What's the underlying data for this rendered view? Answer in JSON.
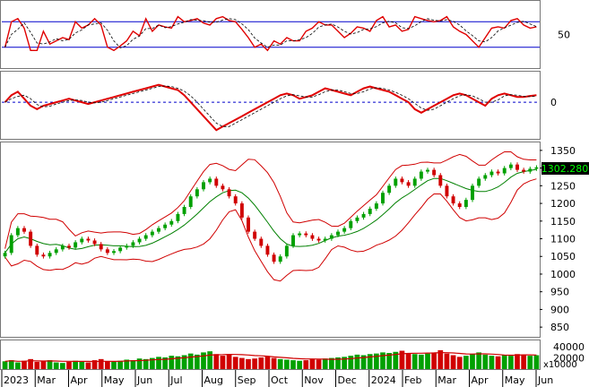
{
  "chart_data": {
    "type": "stock-multi-panel",
    "x_labels": [
      "2023",
      "Mar",
      "Apr",
      "May",
      "Jun",
      "Jul",
      "Aug",
      "Sep",
      "Oct",
      "Nov",
      "Dec",
      "2024",
      "Feb",
      "Mar",
      "Apr",
      "May",
      "Jun"
    ],
    "last_price_badge": "1302.280",
    "colors": {
      "up": "#00a000",
      "down": "#d00000",
      "band": "#d00000",
      "ma": "#008000",
      "osc_line": "#e00000",
      "guide": "#0000cc",
      "badge_bg": "#000000",
      "badge_text": "#00ff00"
    },
    "rsi_panel": {
      "tick_labels": [
        "50"
      ],
      "upper_level": 70,
      "lower_level": 30,
      "range": [
        0,
        100
      ],
      "values": [
        30,
        70,
        75,
        60,
        25,
        25,
        55,
        35,
        40,
        45,
        42,
        70,
        60,
        65,
        75,
        65,
        30,
        25,
        32,
        40,
        55,
        48,
        75,
        55,
        65,
        62,
        60,
        78,
        70,
        72,
        75,
        68,
        65,
        75,
        78,
        72,
        70,
        58,
        45,
        30,
        35,
        25,
        40,
        35,
        45,
        40,
        40,
        55,
        60,
        70,
        65,
        65,
        55,
        45,
        52,
        62,
        60,
        55,
        72,
        78,
        62,
        65,
        55,
        58,
        78,
        75,
        72,
        70,
        72,
        78,
        62,
        55,
        50,
        40,
        30,
        45,
        60,
        62,
        60,
        72,
        75,
        65,
        60,
        62
      ]
    },
    "osc_panel": {
      "tick_labels": [
        "0"
      ],
      "zero_level": 0,
      "range": [
        -10,
        8
      ],
      "values": [
        0,
        2,
        3,
        1,
        -1,
        -2,
        -1,
        -0.5,
        0,
        0.5,
        1,
        0.5,
        0,
        -0.5,
        0,
        0.5,
        1,
        1.5,
        2,
        2.5,
        3,
        3.5,
        4,
        4.5,
        5,
        4.5,
        4,
        3.5,
        2,
        0,
        -2,
        -4,
        -6,
        -8,
        -7,
        -6,
        -5,
        -4,
        -3,
        -2,
        -1,
        0,
        1,
        2,
        2.5,
        2,
        1,
        1.5,
        2,
        3,
        4,
        3.5,
        3,
        2.5,
        2,
        3,
        4,
        4.5,
        4,
        3.5,
        3,
        2,
        1,
        0,
        -2,
        -3,
        -2,
        -1,
        0,
        1,
        2,
        2.5,
        2,
        1,
        0,
        -1,
        1,
        2,
        2.5,
        2,
        1.5,
        1.5,
        1.8,
        2
      ]
    },
    "price_panel": {
      "y_ticks": [
        "1350",
        "1300",
        "1250",
        "1200",
        "1150",
        "1100",
        "1050",
        "1000",
        "950",
        "900",
        "850"
      ],
      "ylim": [
        825,
        1370
      ],
      "close": [
        1060,
        1110,
        1130,
        1120,
        1080,
        1055,
        1050,
        1060,
        1070,
        1080,
        1075,
        1090,
        1100,
        1095,
        1085,
        1070,
        1060,
        1065,
        1075,
        1080,
        1090,
        1100,
        1110,
        1120,
        1130,
        1140,
        1150,
        1170,
        1190,
        1220,
        1240,
        1260,
        1270,
        1250,
        1240,
        1220,
        1200,
        1160,
        1120,
        1100,
        1080,
        1055,
        1035,
        1050,
        1080,
        1110,
        1115,
        1110,
        1100,
        1095,
        1100,
        1110,
        1120,
        1130,
        1150,
        1160,
        1170,
        1185,
        1200,
        1230,
        1250,
        1270,
        1260,
        1250,
        1270,
        1290,
        1295,
        1280,
        1250,
        1220,
        1200,
        1190,
        1210,
        1250,
        1270,
        1280,
        1290,
        1285,
        1300,
        1310,
        1295,
        1290,
        1298,
        1302
      ]
    },
    "volume_panel": {
      "y_ticks": [
        "40000",
        "20000"
      ],
      "unit_label": "x10000",
      "range": [
        0,
        50000
      ],
      "volume": [
        14000,
        16000,
        12000,
        15000,
        18000,
        13000,
        14000,
        16000,
        12000,
        11000,
        13000,
        15000,
        14000,
        12000,
        16000,
        18000,
        14000,
        13000,
        15000,
        17000,
        16000,
        19000,
        18000,
        20000,
        22000,
        21000,
        24000,
        23000,
        25000,
        28000,
        26000,
        30000,
        32000,
        27000,
        24000,
        26000,
        22000,
        20000,
        18000,
        19000,
        21000,
        23000,
        20000,
        18000,
        17000,
        16000,
        15000,
        16000,
        18000,
        17000,
        19000,
        20000,
        21000,
        22000,
        24000,
        26000,
        25000,
        27000,
        28000,
        30000,
        29000,
        31000,
        33000,
        29000,
        27000,
        26000,
        28000,
        30000,
        34000,
        28000,
        25000,
        22000,
        24000,
        27000,
        30000,
        26000,
        24000,
        23000,
        25000,
        24000,
        27000,
        26000,
        24000,
        25000
      ]
    }
  }
}
